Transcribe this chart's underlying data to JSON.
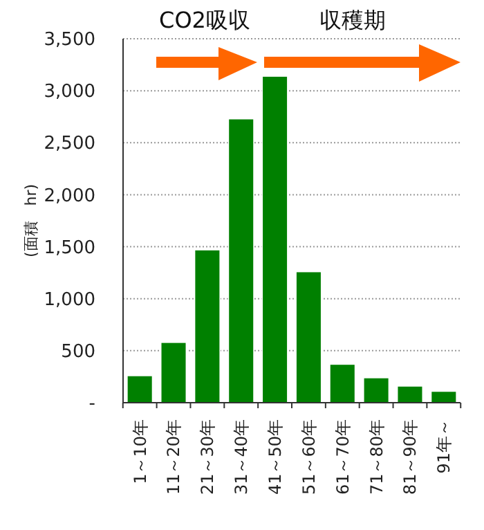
{
  "chart_data": {
    "type": "bar",
    "ylabel": "(面積　hr)",
    "categories": [
      "1～10年",
      "11～20年",
      "21～30年",
      "31～40年",
      "41～50年",
      "51～60年",
      "61～70年",
      "71～80年",
      "81～90年",
      "91年～"
    ],
    "values": [
      260,
      580,
      1470,
      2730,
      3140,
      1260,
      370,
      240,
      160,
      110
    ],
    "color": "#008000",
    "ylim": [
      0,
      3500
    ],
    "yticks": [
      {
        "value": 0,
        "label": "-"
      },
      {
        "value": 500,
        "label": "500"
      },
      {
        "value": 1000,
        "label": "1,000"
      },
      {
        "value": 1500,
        "label": "1,500"
      },
      {
        "value": 2000,
        "label": "2,000"
      },
      {
        "value": 2500,
        "label": "2,500"
      },
      {
        "value": 3000,
        "label": "3,000"
      },
      {
        "value": 3500,
        "label": "3,500"
      }
    ],
    "grid": "y",
    "annotations": [
      "CO2吸収",
      "収穫期"
    ]
  }
}
